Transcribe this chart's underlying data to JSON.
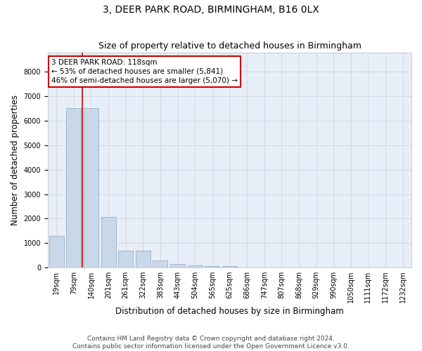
{
  "title": "3, DEER PARK ROAD, BIRMINGHAM, B16 0LX",
  "subtitle": "Size of property relative to detached houses in Birmingham",
  "xlabel": "Distribution of detached houses by size in Birmingham",
  "ylabel": "Number of detached properties",
  "bar_color": "#c8d8e8",
  "bar_edge_color": "#9ab0c8",
  "categories": [
    "19sqm",
    "79sqm",
    "140sqm",
    "201sqm",
    "261sqm",
    "322sqm",
    "383sqm",
    "443sqm",
    "504sqm",
    "565sqm",
    "625sqm",
    "686sqm",
    "747sqm",
    "807sqm",
    "868sqm",
    "929sqm",
    "990sqm",
    "1050sqm",
    "1111sqm",
    "1172sqm",
    "1232sqm"
  ],
  "values": [
    1300,
    6530,
    6530,
    2080,
    700,
    680,
    280,
    140,
    100,
    55,
    50,
    0,
    0,
    0,
    0,
    0,
    0,
    0,
    0,
    0,
    0
  ],
  "ylim": [
    0,
    8800
  ],
  "yticks": [
    0,
    1000,
    2000,
    3000,
    4000,
    5000,
    6000,
    7000,
    8000
  ],
  "red_line_x": 1.5,
  "annotation_text": "3 DEER PARK ROAD: 118sqm\n← 53% of detached houses are smaller (5,841)\n46% of semi-detached houses are larger (5,070) →",
  "annotation_box_color": "#ffffff",
  "annotation_border_color": "#cc0000",
  "footer_line1": "Contains HM Land Registry data © Crown copyright and database right 2024.",
  "footer_line2": "Contains public sector information licensed under the Open Government Licence v3.0.",
  "grid_color": "#d0d8e8",
  "plot_bg_color": "#e8eef8",
  "title_fontsize": 10,
  "subtitle_fontsize": 9,
  "xlabel_fontsize": 8.5,
  "ylabel_fontsize": 8.5,
  "tick_fontsize": 7,
  "annotation_fontsize": 7.5,
  "footer_fontsize": 6.5
}
